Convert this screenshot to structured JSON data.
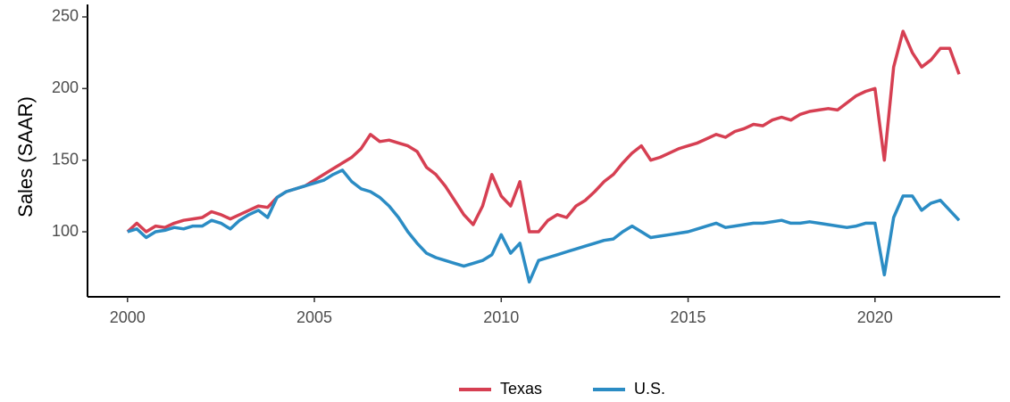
{
  "chart_data": {
    "type": "line",
    "y_label": "Sales (SAAR)",
    "x": [
      2000.0,
      2000.25,
      2000.5,
      2000.75,
      2001.0,
      2001.25,
      2001.5,
      2001.75,
      2002.0,
      2002.25,
      2002.5,
      2002.75,
      2003.0,
      2003.25,
      2003.5,
      2003.75,
      2004.0,
      2004.25,
      2004.5,
      2004.75,
      2005.0,
      2005.25,
      2005.5,
      2005.75,
      2006.0,
      2006.25,
      2006.5,
      2006.75,
      2007.0,
      2007.25,
      2007.5,
      2007.75,
      2008.0,
      2008.25,
      2008.5,
      2008.75,
      2009.0,
      2009.25,
      2009.5,
      2009.75,
      2010.0,
      2010.25,
      2010.5,
      2010.75,
      2011.0,
      2011.25,
      2011.5,
      2011.75,
      2012.0,
      2012.25,
      2012.5,
      2012.75,
      2013.0,
      2013.25,
      2013.5,
      2013.75,
      2014.0,
      2014.25,
      2014.5,
      2014.75,
      2015.0,
      2015.25,
      2015.5,
      2015.75,
      2016.0,
      2016.25,
      2016.5,
      2016.75,
      2017.0,
      2017.25,
      2017.5,
      2017.75,
      2018.0,
      2018.25,
      2018.5,
      2018.75,
      2019.0,
      2019.25,
      2019.5,
      2019.75,
      2020.0,
      2020.25,
      2020.5,
      2020.75,
      2021.0,
      2021.25,
      2021.5,
      2021.75,
      2022.0,
      2022.25
    ],
    "series": [
      {
        "name": "Texas",
        "color": "#d63f52",
        "values": [
          100,
          106,
          100,
          104,
          103,
          106,
          108,
          109,
          110,
          114,
          112,
          109,
          112,
          115,
          118,
          117,
          124,
          128,
          130,
          132,
          136,
          140,
          144,
          148,
          152,
          158,
          168,
          163,
          164,
          162,
          160,
          156,
          145,
          140,
          132,
          122,
          112,
          105,
          118,
          140,
          125,
          118,
          135,
          100,
          100,
          108,
          112,
          110,
          118,
          122,
          128,
          135,
          140,
          148,
          155,
          160,
          150,
          152,
          155,
          158,
          160,
          162,
          165,
          168,
          166,
          170,
          172,
          175,
          174,
          178,
          180,
          178,
          182,
          184,
          185,
          186,
          185,
          190,
          195,
          198,
          200,
          150,
          215,
          240,
          225,
          215,
          220,
          228,
          228,
          210
        ]
      },
      {
        "name": "U.S.",
        "color": "#2b8cc4",
        "values": [
          100,
          102,
          96,
          100,
          101,
          103,
          102,
          104,
          104,
          108,
          106,
          102,
          108,
          112,
          115,
          110,
          124,
          128,
          130,
          132,
          134,
          136,
          140,
          143,
          135,
          130,
          128,
          124,
          118,
          110,
          100,
          92,
          85,
          82,
          80,
          78,
          76,
          78,
          80,
          84,
          98,
          85,
          92,
          65,
          80,
          82,
          84,
          86,
          88,
          90,
          92,
          94,
          95,
          100,
          104,
          100,
          96,
          97,
          98,
          99,
          100,
          102,
          104,
          106,
          103,
          104,
          105,
          106,
          106,
          107,
          108,
          106,
          106,
          107,
          106,
          105,
          104,
          103,
          104,
          106,
          106,
          70,
          110,
          125,
          125,
          115,
          120,
          122,
          115,
          108
        ]
      }
    ],
    "xlim": [
      1998.93,
      2023.35
    ],
    "ylim": [
      54.6,
      258.7
    ],
    "xticks": [
      2000,
      2005,
      2010,
      2015,
      2020
    ],
    "yticks": [
      100,
      150,
      200,
      250
    ],
    "legend": "bottom"
  }
}
